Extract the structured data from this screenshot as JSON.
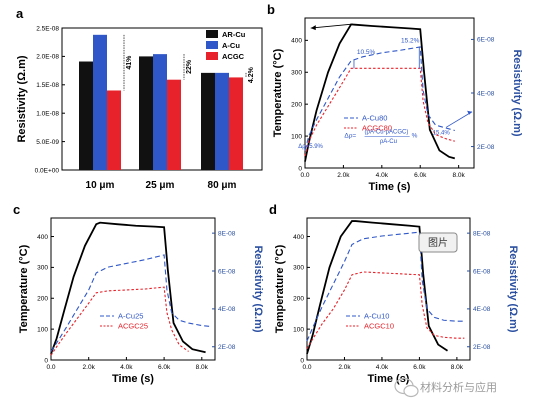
{
  "chart_data": [
    {
      "panel_label": "a",
      "type": "bar",
      "categories": [
        "10 μm",
        "25 μm",
        "80 μm"
      ],
      "series": [
        {
          "name": "AR-Cu",
          "color": "#111111",
          "values": [
            1.91e-08,
            2e-08,
            1.71e-08
          ]
        },
        {
          "name": "A-Cu",
          "color": "#2f57c8",
          "values": [
            2.38e-08,
            2.04e-08,
            1.71e-08
          ]
        },
        {
          "name": "ACGC",
          "color": "#e8222a",
          "values": [
            1.4e-08,
            1.59e-08,
            1.63e-08
          ]
        }
      ],
      "ylabel": "Resistivity (Ω.m)",
      "ylim": [
        0,
        2.5e-08
      ],
      "yticks": [
        "0.0E+00",
        "5.0E-09",
        "1.0E-08",
        "1.5E-08",
        "2.0E-08",
        "2.5E-08"
      ],
      "annotations": [
        "41%",
        "22%",
        "4.2%"
      ],
      "legend": "top-right"
    },
    {
      "panel_label": "b",
      "type": "line",
      "xlabel": "Time (s)",
      "ylabel": "Temperature (°C)",
      "y2label": "Resistivity (Ω.m)",
      "xticks": [
        "0.0",
        "2.0k",
        "4.0k",
        "6.0k",
        "8.0k"
      ],
      "yticks": [
        "0",
        "100",
        "200",
        "300",
        "400"
      ],
      "y2ticks": [
        "2E-08",
        "4E-08",
        "6E-08"
      ],
      "xlim": [
        0,
        8800
      ],
      "ylim": [
        0,
        470
      ],
      "y2lim": [
        1.2e-08,
        6.8e-08
      ],
      "temperature": {
        "x": [
          0,
          200,
          600,
          1200,
          1800,
          2400,
          2600,
          3500,
          4500,
          5500,
          6000,
          6200,
          6500,
          7000,
          7500,
          7800
        ],
        "y": [
          20,
          80,
          180,
          300,
          390,
          450,
          449,
          445,
          441,
          437,
          435,
          300,
          120,
          55,
          35,
          30
        ]
      },
      "series": [
        {
          "name": "A-Cu80",
          "color": "#2f57c8",
          "dash": "long",
          "x": [
            0,
            200,
            600,
            1200,
            1800,
            2400,
            3000,
            4000,
            5000,
            6000,
            6150,
            6400,
            6800,
            7300,
            7800
          ],
          "y": [
            1.85e-08,
            2.4e-08,
            3e-08,
            3.8e-08,
            4.6e-08,
            5.2e-08,
            5.35e-08,
            5.5e-08,
            5.6e-08,
            5.72e-08,
            4.1e-08,
            3.2e-08,
            2.8e-08,
            2.7e-08,
            2.6e-08
          ]
        },
        {
          "name": "ACGC80",
          "color": "#e8222a",
          "dash": "short",
          "x": [
            0,
            200,
            600,
            1200,
            1800,
            2400,
            3000,
            4000,
            5000,
            6000,
            6150,
            6400,
            6800,
            7300,
            7800
          ],
          "y": [
            1.65e-08,
            2.2e-08,
            2.8e-08,
            3.5e-08,
            4.2e-08,
            4.92e-08,
            4.92e-08,
            4.92e-08,
            4.92e-08,
            4.92e-08,
            3.7e-08,
            2.9e-08,
            2.45e-08,
            2.3e-08,
            2.2e-08
          ]
        }
      ],
      "annotations": [
        "10.5%",
        "15.2%",
        "Δρ=5.9%",
        "Δρ=",
        "(ρA-Cu-ρACGC)",
        "ρA-Cu",
        "%",
        "15.4%"
      ]
    },
    {
      "panel_label": "c",
      "type": "line",
      "xlabel": "Time (s)",
      "ylabel": "Temperature (°C)",
      "y2label": "Resistivity (Ω.m)",
      "xticks": [
        "0.0",
        "2.0k",
        "4.0k",
        "6.0k",
        "8.0k"
      ],
      "yticks": [
        "0",
        "100",
        "200",
        "300",
        "400"
      ],
      "y2ticks": [
        "2E-08",
        "4E-08",
        "6E-08",
        "8E-08"
      ],
      "xlim": [
        0,
        8700
      ],
      "ylim": [
        0,
        460
      ],
      "y2lim": [
        1.3e-08,
        8.8e-08
      ],
      "temperature": {
        "x": [
          0,
          300,
          700,
          1200,
          1800,
          2400,
          2600,
          3500,
          4500,
          5500,
          6000,
          6200,
          6500,
          7000,
          7500,
          8200
        ],
        "y": [
          20,
          70,
          160,
          270,
          370,
          440,
          445,
          440,
          435,
          432,
          430,
          290,
          120,
          60,
          35,
          25
        ]
      },
      "series": [
        {
          "name": "A-Cu25",
          "color": "#2f57c8",
          "dash": "long",
          "x": [
            0,
            300,
            800,
            1400,
            2000,
            2400,
            3000,
            4000,
            5000,
            6000,
            6150,
            6400,
            6800,
            7300,
            8000,
            8400
          ],
          "y": [
            1.75e-08,
            2.2e-08,
            3e-08,
            4e-08,
            5e-08,
            5.9e-08,
            6.2e-08,
            6.4e-08,
            6.6e-08,
            6.85e-08,
            5e-08,
            3.8e-08,
            3.4e-08,
            3.25e-08,
            3.12e-08,
            3.08e-08
          ]
        },
        {
          "name": "ACGC25",
          "color": "#e8222a",
          "dash": "short",
          "x": [
            0,
            300,
            800,
            1400,
            2000,
            2400,
            3000,
            4000,
            5000,
            6000,
            6150,
            6400,
            6800,
            7300
          ],
          "y": [
            1.55e-08,
            2e-08,
            2.7e-08,
            3.5e-08,
            4.3e-08,
            4.85e-08,
            4.95e-08,
            5e-08,
            5.05e-08,
            5.15e-08,
            3.8e-08,
            2.9e-08,
            2.1e-08,
            1.75e-08
          ]
        }
      ]
    },
    {
      "panel_label": "d",
      "type": "line",
      "xlabel": "Time (s)",
      "ylabel": "Temperature (°C)",
      "y2label": "Resistivity (Ω.m)",
      "xticks": [
        "0.0",
        "2.0k",
        "4.0k",
        "6.0k",
        "8.0k"
      ],
      "yticks": [
        "0",
        "100",
        "200",
        "300",
        "400"
      ],
      "y2ticks": [
        "2E-08",
        "4E-08",
        "6E-08",
        "8E-08"
      ],
      "xlim": [
        0,
        8700
      ],
      "ylim": [
        0,
        460
      ],
      "y2lim": [
        1.3e-08,
        8.8e-08
      ],
      "temperature": {
        "x": [
          0,
          300,
          700,
          1200,
          1800,
          2400,
          2600,
          3500,
          4500,
          5500,
          6000,
          6200,
          6500,
          7000,
          7500
        ],
        "y": [
          20,
          80,
          180,
          300,
          400,
          450,
          450,
          445,
          440,
          435,
          432,
          280,
          110,
          50,
          30
        ]
      },
      "series": [
        {
          "name": "A-Cu10",
          "color": "#2f57c8",
          "dash": "long",
          "x": [
            0,
            300,
            800,
            1400,
            2000,
            2400,
            3000,
            4000,
            5000,
            6000,
            6150,
            6400,
            6800,
            7300,
            8000,
            8400
          ],
          "y": [
            2.3e-08,
            3e-08,
            4.1e-08,
            5.3e-08,
            6.5e-08,
            7.4e-08,
            7.7e-08,
            7.85e-08,
            7.95e-08,
            8.05e-08,
            5.5e-08,
            4e-08,
            3.55e-08,
            3.4e-08,
            3.35e-08,
            3.35e-08
          ]
        },
        {
          "name": "ACGC10",
          "color": "#e8222a",
          "dash": "short",
          "x": [
            0,
            300,
            800,
            1400,
            2000,
            2400,
            3000,
            4000,
            5000,
            6000,
            6150,
            6400,
            6800,
            7300,
            8000,
            8400
          ],
          "y": [
            1.9e-08,
            2.4e-08,
            3.2e-08,
            4e-08,
            5e-08,
            5.8e-08,
            5.95e-08,
            5.9e-08,
            5.85e-08,
            5.8e-08,
            4.2e-08,
            3e-08,
            2.6e-08,
            2.5e-08,
            2.45e-08,
            2.45e-08
          ]
        }
      ]
    }
  ],
  "overlay_tag": "图片",
  "watermark": "材料分析与应用",
  "watermark_logo": "wechat-logo"
}
